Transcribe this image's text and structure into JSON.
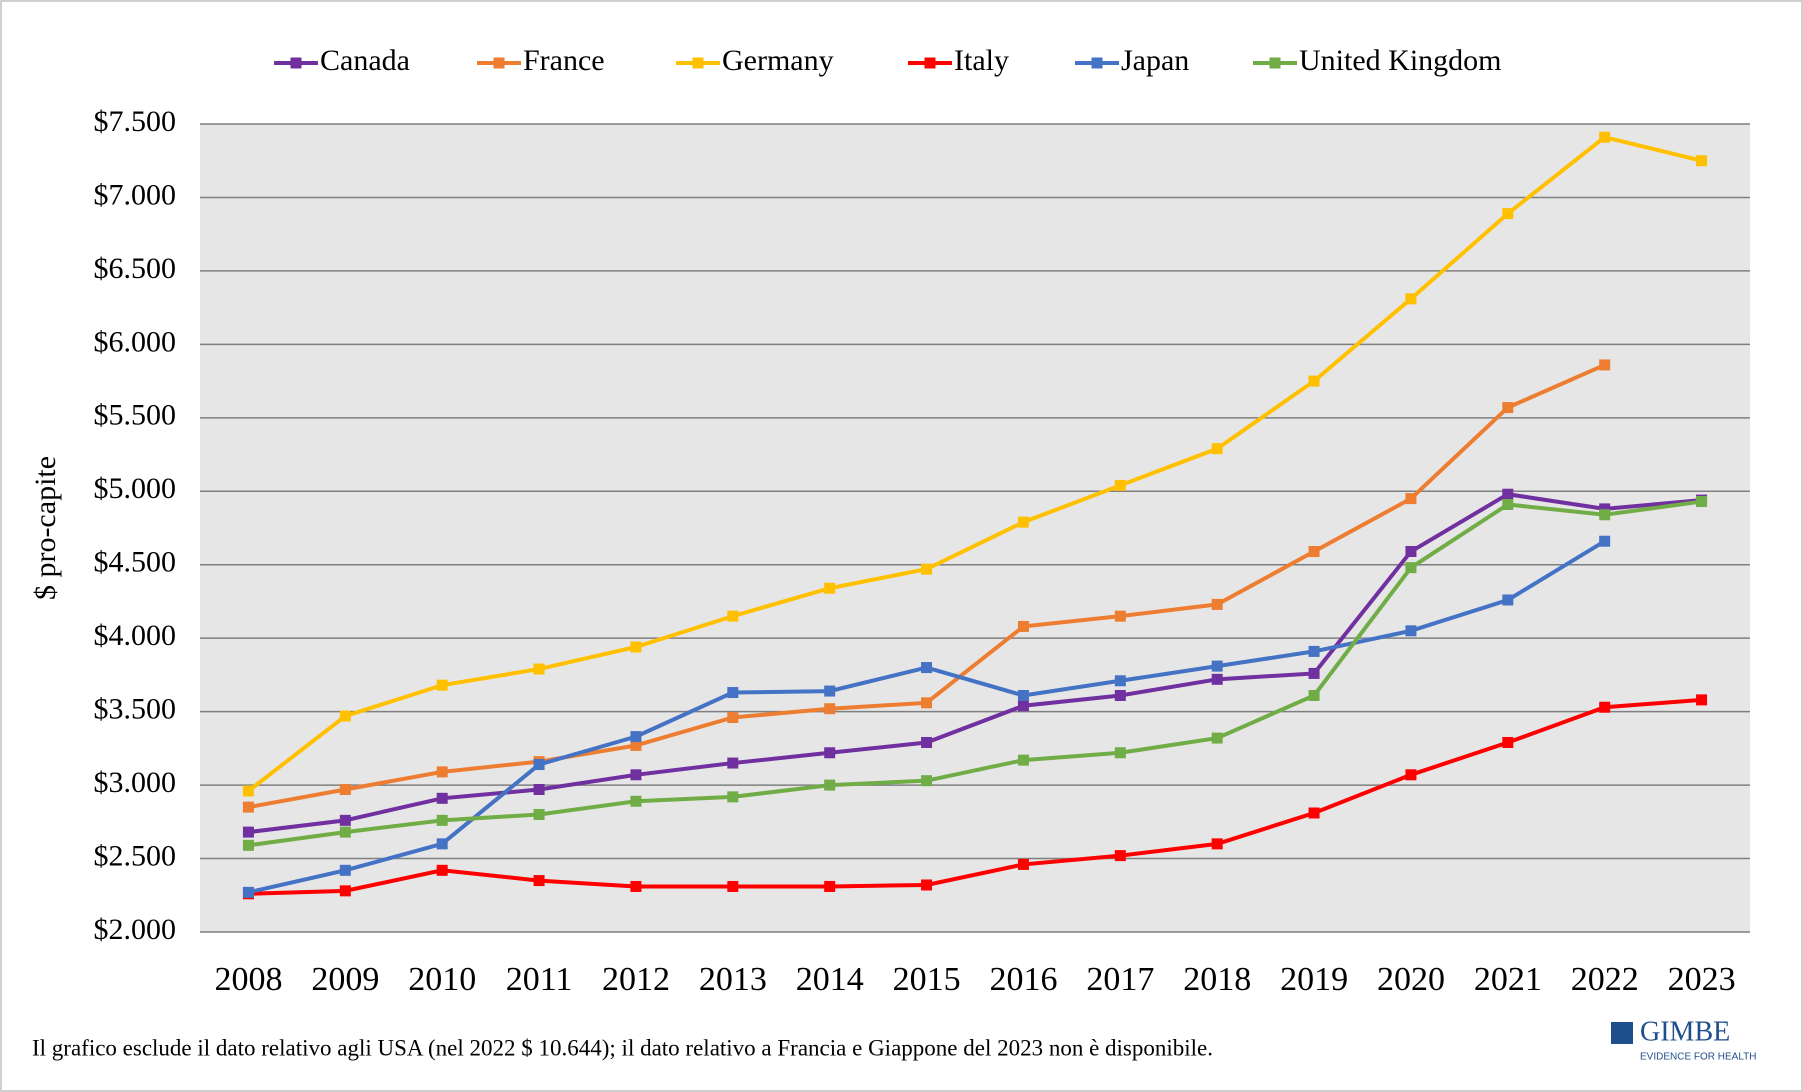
{
  "chart_data": {
    "type": "line",
    "y_label": "$ pro-capite",
    "categories": [
      "2008",
      "2009",
      "2010",
      "2011",
      "2012",
      "2013",
      "2014",
      "2015",
      "2016",
      "2017",
      "2018",
      "2019",
      "2020",
      "2021",
      "2022",
      "2023"
    ],
    "series": [
      {
        "name": "Canada",
        "color": "#7030a0",
        "values": [
          2680,
          2760,
          2910,
          2970,
          3070,
          3150,
          3220,
          3290,
          3540,
          3610,
          3720,
          3760,
          4590,
          4980,
          4880,
          4940
        ]
      },
      {
        "name": "France",
        "color": "#ed7d31",
        "values": [
          2850,
          2970,
          3090,
          3160,
          3270,
          3460,
          3520,
          3560,
          4080,
          4150,
          4230,
          4590,
          4950,
          5570,
          5860,
          null
        ]
      },
      {
        "name": "Germany",
        "color": "#ffc000",
        "values": [
          2960,
          3470,
          3680,
          3790,
          3940,
          4150,
          4340,
          4470,
          4790,
          5040,
          5290,
          5750,
          6310,
          6890,
          7410,
          7250
        ]
      },
      {
        "name": "Italy",
        "color": "#ff0000",
        "values": [
          2260,
          2280,
          2420,
          2350,
          2310,
          2310,
          2310,
          2320,
          2460,
          2520,
          2600,
          2810,
          3070,
          3290,
          3530,
          3580
        ]
      },
      {
        "name": "Japan",
        "color": "#4472c4",
        "values": [
          2270,
          2420,
          2600,
          3140,
          3330,
          3630,
          3640,
          3800,
          3610,
          3710,
          3810,
          3910,
          4050,
          4260,
          4660,
          null
        ]
      },
      {
        "name": "United Kingdom",
        "color": "#70ad47",
        "values": [
          2590,
          2680,
          2760,
          2800,
          2890,
          2920,
          3000,
          3030,
          3170,
          3220,
          3320,
          3610,
          4480,
          4910,
          4840,
          4930
        ]
      }
    ],
    "ylim": [
      2000,
      7500
    ],
    "yticks": [
      {
        "value": 2000,
        "label": "$2.000"
      },
      {
        "value": 2500,
        "label": "$2.500"
      },
      {
        "value": 3000,
        "label": "$3.000"
      },
      {
        "value": 3500,
        "label": "$3.500"
      },
      {
        "value": 4000,
        "label": "$4.000"
      },
      {
        "value": 4500,
        "label": "$4.500"
      },
      {
        "value": 5000,
        "label": "$5.000"
      },
      {
        "value": 5500,
        "label": "$5.500"
      },
      {
        "value": 6000,
        "label": "$6.000"
      },
      {
        "value": 6500,
        "label": "$6.500"
      },
      {
        "value": 7000,
        "label": "$7.000"
      },
      {
        "value": 7500,
        "label": "$7.500"
      }
    ],
    "grid": true,
    "legend": "top"
  },
  "footnote": "Il grafico esclude il dato relativo agli USA (nel 2022 $ 10.644); il dato relativo a Francia e Giappone del 2023 non è disponibile.",
  "logo": {
    "title": "GIMBE",
    "subtitle": "EVIDENCE FOR HEALTH"
  }
}
